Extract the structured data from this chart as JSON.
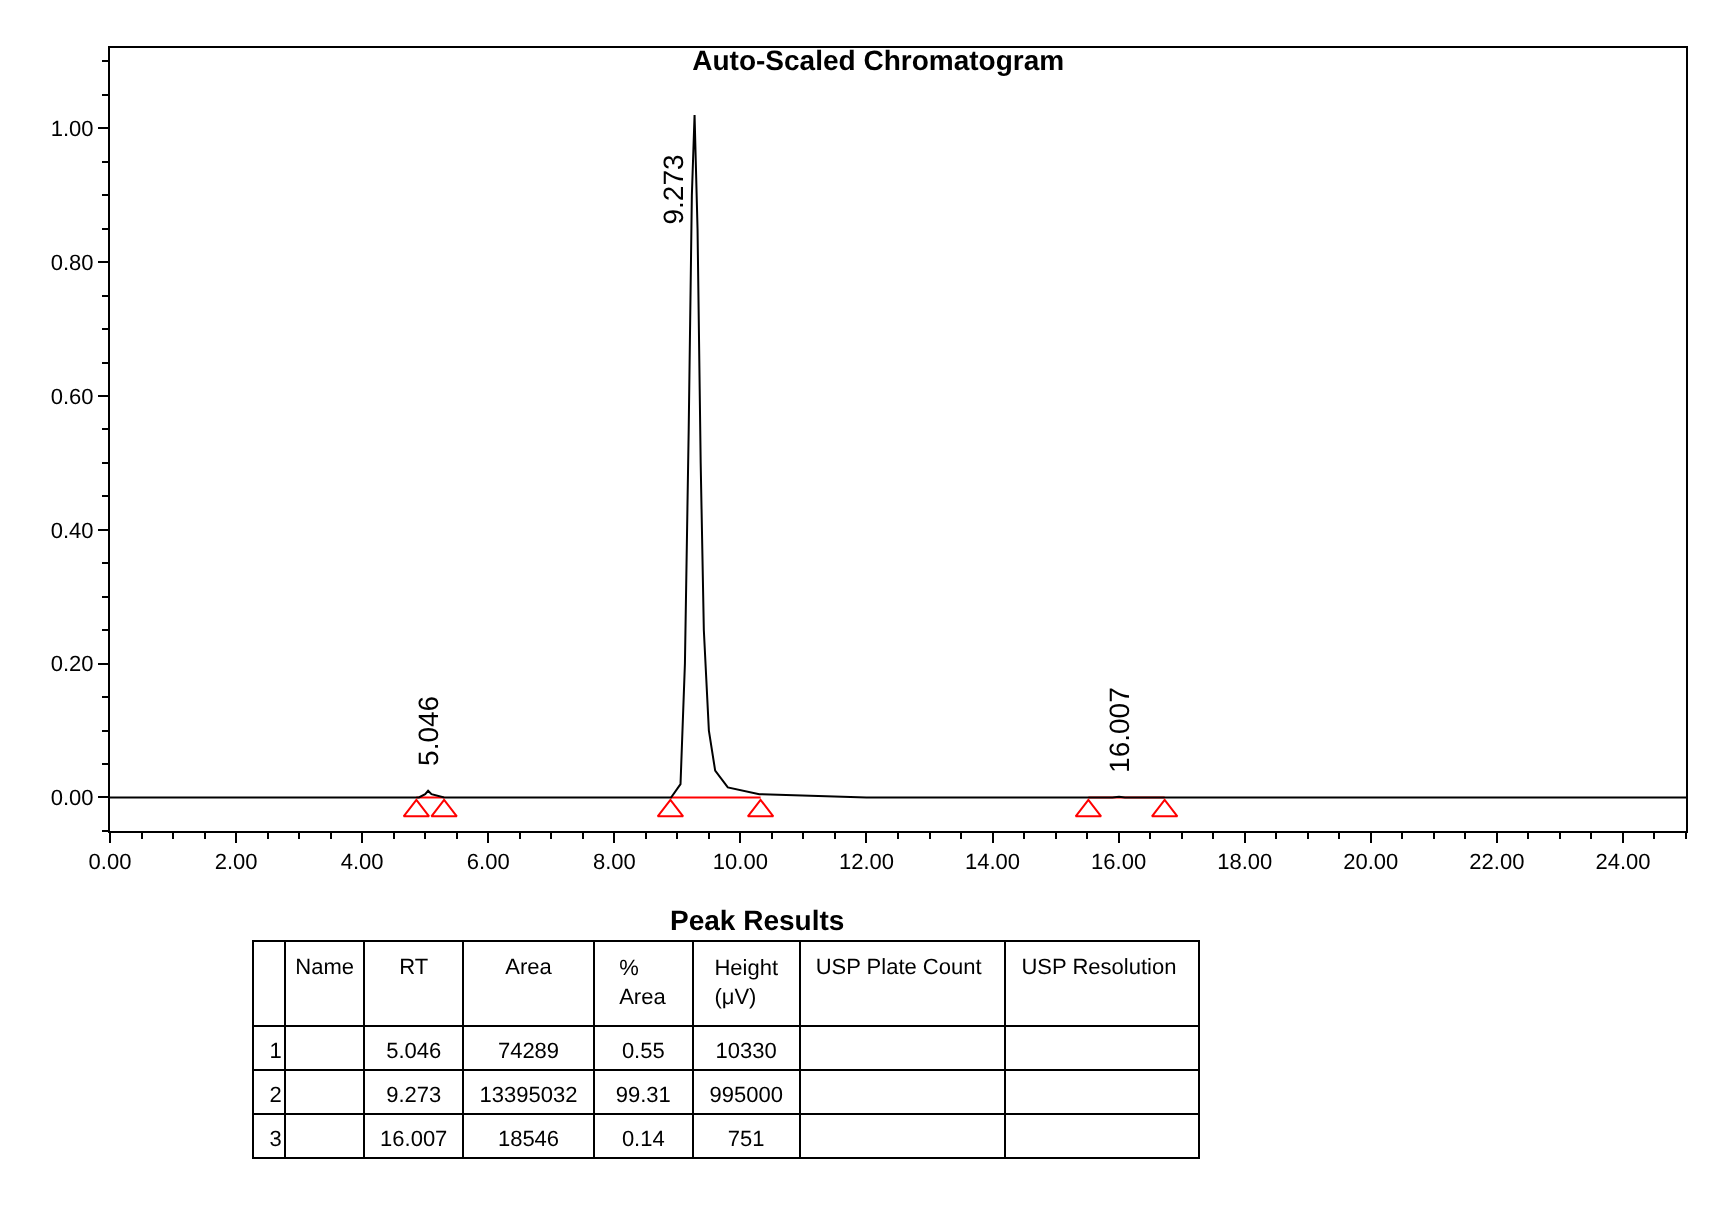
{
  "chart_data": {
    "type": "line",
    "title": "Auto-Scaled Chromatogram",
    "xlim": [
      0,
      25
    ],
    "ylim": [
      -0.05,
      1.12
    ],
    "xticks": [
      {
        "value": 0,
        "label": "0.00"
      },
      {
        "value": 2,
        "label": "2.00"
      },
      {
        "value": 4,
        "label": "4.00"
      },
      {
        "value": 6,
        "label": "6.00"
      },
      {
        "value": 8,
        "label": "8.00"
      },
      {
        "value": 10,
        "label": "10.00"
      },
      {
        "value": 12,
        "label": "12.00"
      },
      {
        "value": 14,
        "label": "14.00"
      },
      {
        "value": 16,
        "label": "16.00"
      },
      {
        "value": 18,
        "label": "18.00"
      },
      {
        "value": 20,
        "label": "20.00"
      },
      {
        "value": 22,
        "label": "22.00"
      },
      {
        "value": 24,
        "label": "24.00"
      }
    ],
    "yticks": [
      {
        "value": 0,
        "label": "0.00"
      },
      {
        "value": 0.2,
        "label": "0.20"
      },
      {
        "value": 0.4,
        "label": "0.40"
      },
      {
        "value": 0.6,
        "label": "0.60"
      },
      {
        "value": 0.8,
        "label": "0.80"
      },
      {
        "value": 1.0,
        "label": "1.00"
      }
    ],
    "series": [
      {
        "color": "#ff0000",
        "x": [
          4.86,
          5.3,
          5.31,
          8.89,
          10.32,
          10.33,
          15.52,
          16.73
        ],
        "values": [
          0,
          0,
          null,
          0,
          0,
          null,
          0,
          0
        ]
      },
      {
        "color": "#000000",
        "x": [
          0,
          4.9,
          5.0,
          5.046,
          5.1,
          5.3,
          8.9,
          9.05,
          9.12,
          9.18,
          9.23,
          9.273,
          9.32,
          9.37,
          9.42,
          9.5,
          9.6,
          9.8,
          10.3,
          12,
          15.9,
          16.007,
          16.1,
          25
        ],
        "values": [
          0,
          0,
          0.005,
          0.01,
          0.005,
          0,
          0,
          0.02,
          0.2,
          0.55,
          0.9,
          1.02,
          0.85,
          0.5,
          0.25,
          0.1,
          0.04,
          0.015,
          0.005,
          0,
          0,
          0.001,
          0,
          0
        ]
      },
      {
        "type": "scatter",
        "color": "#ff0000",
        "marker": "triangle",
        "x": [
          4.86,
          5.3,
          8.89,
          10.32,
          15.52,
          16.73
        ],
        "values": [
          -0.02,
          -0.02,
          -0.02,
          -0.02,
          -0.02,
          -0.02
        ]
      }
    ],
    "annotations": [
      {
        "text": "5.046",
        "x": 5.046,
        "y": 0.01
      },
      {
        "text": "9.273",
        "x": 9.273,
        "y": 1.02
      },
      {
        "text": "16.007",
        "x": 16.007,
        "y": 0.001
      },
      "Peak Results",
      null,
      "Name",
      "RT",
      "Area",
      "% Area",
      "Height\n(μV)",
      "USP Plate Count",
      "USP Resolution",
      "1",
      null,
      "5.046",
      "74289",
      "0.55",
      "10330",
      null,
      null,
      "2",
      null,
      "9.273",
      "13395032",
      "99.31",
      "995000",
      null,
      null,
      "3",
      null,
      "16.007",
      "18546",
      "0.14",
      "751",
      null,
      null
    ]
  }
}
